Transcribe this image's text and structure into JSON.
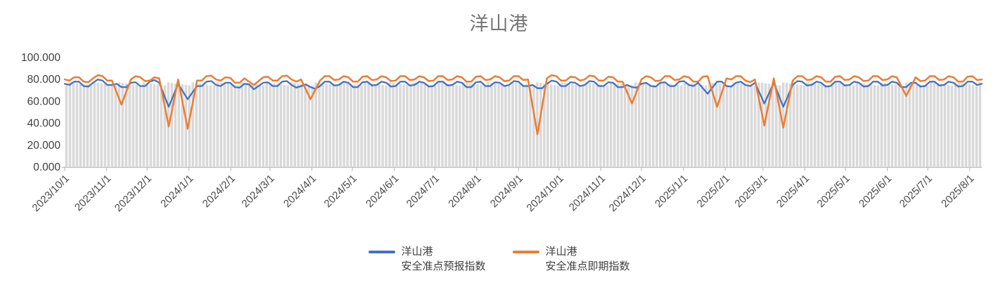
{
  "title": "洋山港",
  "chart_data": {
    "type": "line",
    "title": "洋山港",
    "x_axis": {
      "start_date": "2023/10/1",
      "end_date": "2025/8/10",
      "total_days": 679,
      "sample_step_days": 7,
      "tick_labels": [
        "2023/10/1",
        "2023/11/1",
        "2023/12/1",
        "2024/1/1",
        "2024/2/1",
        "2024/3/1",
        "2024/4/1",
        "2024/5/1",
        "2024/6/1",
        "2024/7/1",
        "2024/8/1",
        "2024/9/1",
        "2024/10/1",
        "2024/11/1",
        "2024/12/1",
        "2025/1/1",
        "2025/2/1",
        "2025/3/1",
        "2025/4/1",
        "2025/5/1",
        "2025/6/1",
        "2025/7/1",
        "2025/8/1"
      ]
    },
    "y_axis": {
      "min": 0,
      "max": 100,
      "tick_step": 20,
      "tick_labels": [
        "100.000",
        "80.000",
        "60.000",
        "40.000",
        "20.000",
        "0.000"
      ]
    },
    "grid": "none",
    "legend_position": "bottom-center",
    "series": [
      {
        "name": "洋山港安全准点预报指数",
        "color": "#4472C4",
        "values": [
          76,
          78,
          74,
          77,
          79,
          75,
          73,
          77,
          74,
          78,
          77,
          55,
          76,
          62,
          74,
          78,
          75,
          77,
          73,
          76,
          71,
          77,
          74,
          78,
          75,
          74,
          73,
          74,
          78,
          75,
          77,
          73,
          78,
          75,
          77,
          74,
          78,
          75,
          77,
          74,
          78,
          75,
          77,
          73,
          78,
          74,
          77,
          75,
          78,
          74,
          72,
          76,
          78,
          74,
          77,
          75,
          78,
          74,
          77,
          73,
          73,
          76,
          74,
          77,
          74,
          78,
          75,
          77,
          67,
          78,
          74,
          77,
          75,
          77,
          58,
          77,
          55,
          75,
          78,
          75,
          77,
          74,
          78,
          75,
          77,
          74,
          78,
          75,
          77,
          73,
          77,
          74,
          78,
          75,
          77,
          74,
          78,
          76
        ]
      },
      {
        "name": "洋山港安全准点即期指数",
        "color": "#ED7D31",
        "values": [
          80,
          82,
          78,
          81,
          83,
          79,
          57,
          80,
          82,
          79,
          81,
          37,
          80,
          35,
          79,
          83,
          80,
          82,
          77,
          81,
          75,
          82,
          79,
          83,
          80,
          80,
          62,
          79,
          83,
          80,
          82,
          78,
          83,
          80,
          82,
          79,
          83,
          80,
          82,
          79,
          83,
          80,
          82,
          78,
          83,
          80,
          82,
          79,
          83,
          80,
          30,
          81,
          83,
          79,
          82,
          80,
          83,
          79,
          82,
          78,
          58,
          80,
          82,
          79,
          83,
          80,
          82,
          78,
          83,
          55,
          81,
          83,
          79,
          80,
          38,
          81,
          36,
          79,
          83,
          80,
          82,
          78,
          83,
          80,
          82,
          79,
          83,
          80,
          82,
          65,
          82,
          79,
          83,
          80,
          82,
          78,
          83,
          80
        ]
      }
    ],
    "background_bars": {
      "color": "#D9D9D9",
      "count": 261,
      "approx_value": 76
    }
  },
  "legend": {
    "items": [
      {
        "line1": "洋山港",
        "line2": "安全准点预报指数",
        "color": "#4472C4"
      },
      {
        "line1": "洋山港",
        "line2": "安全准点即期指数",
        "color": "#ED7D31"
      }
    ]
  }
}
